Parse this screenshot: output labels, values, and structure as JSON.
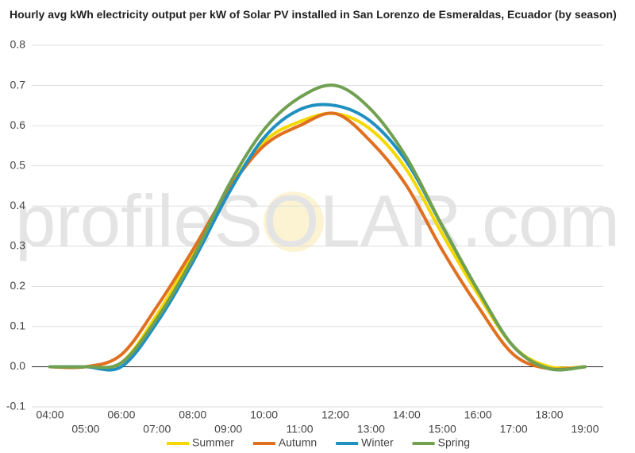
{
  "chart_data": {
    "type": "line",
    "title": "Hourly avg kWh electricity output per kW of Solar PV installed in San Lorenzo de Esmeraldas, Ecuador (by season)",
    "watermark": "profileSOLAR.com",
    "categories": [
      "04:00",
      "05:00",
      "06:00",
      "07:00",
      "08:00",
      "09:00",
      "10:00",
      "11:00",
      "12:00",
      "13:00",
      "14:00",
      "15:00",
      "16:00",
      "17:00",
      "18:00",
      "19:00"
    ],
    "series": [
      {
        "name": "Summer",
        "color": "#f5d800",
        "values": [
          0,
          0,
          0.01,
          0.13,
          0.28,
          0.44,
          0.56,
          0.61,
          0.63,
          0.59,
          0.49,
          0.33,
          0.18,
          0.05,
          0,
          0
        ]
      },
      {
        "name": "Autumn",
        "color": "#e07020",
        "values": [
          0,
          0,
          0.03,
          0.15,
          0.29,
          0.44,
          0.55,
          0.6,
          0.63,
          0.56,
          0.45,
          0.29,
          0.15,
          0.03,
          -0.005,
          0
        ]
      },
      {
        "name": "Winter",
        "color": "#2090c0",
        "values": [
          0,
          0,
          0,
          0.11,
          0.26,
          0.43,
          0.57,
          0.64,
          0.65,
          0.61,
          0.51,
          0.35,
          0.19,
          0.05,
          -0.005,
          0
        ]
      },
      {
        "name": "Spring",
        "color": "#70a050",
        "values": [
          0,
          0,
          0.01,
          0.12,
          0.27,
          0.45,
          0.59,
          0.67,
          0.7,
          0.64,
          0.52,
          0.35,
          0.19,
          0.05,
          -0.005,
          0
        ]
      }
    ],
    "ylim": [
      -0.1,
      0.8
    ],
    "yticks": [
      -0.1,
      {
        "value": 0,
        "label": "0.0"
      },
      0.1,
      0.2,
      0.3,
      0.4,
      0.5,
      0.6,
      0.7,
      0.8
    ],
    "grid": true,
    "legend": "bottom"
  }
}
